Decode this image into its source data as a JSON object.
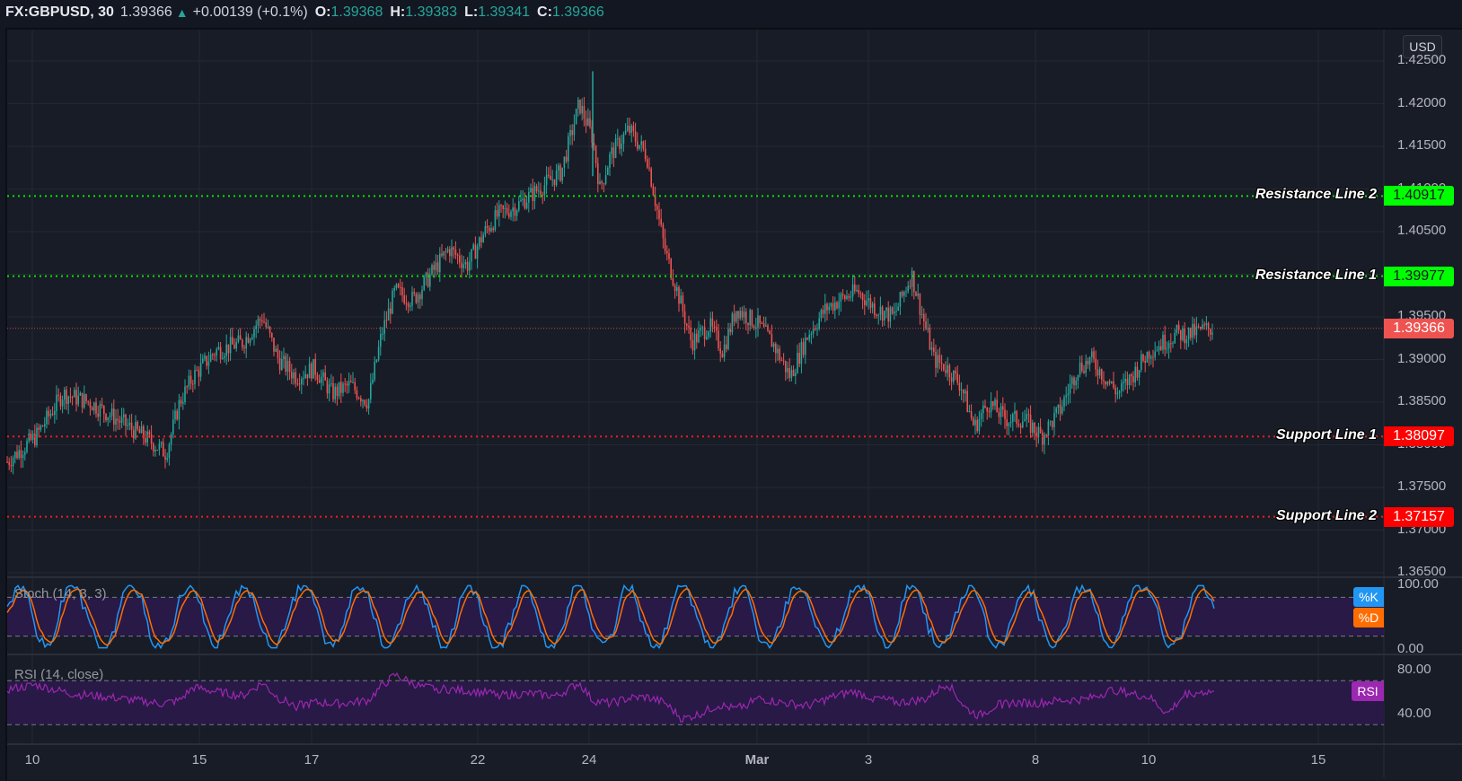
{
  "header": {
    "symbol": "FX:GBPUSD, 30",
    "last": "1.39366",
    "change_arrow": "▲",
    "change": "+0.00139 (+0.1%)",
    "o_label": "O:",
    "o": "1.39368",
    "h_label": "H:",
    "h": "1.39383",
    "l_label": "L:",
    "l": "1.39341",
    "c_label": "C:",
    "c": "1.39366"
  },
  "price_axis": {
    "currency_button": "USD",
    "ticks": [
      "1.42500",
      "1.42000",
      "1.41500",
      "1.41000",
      "1.40500",
      "1.40000",
      "1.39500",
      "1.39000",
      "1.38500",
      "1.38000",
      "1.37500",
      "1.37000",
      "1.36500"
    ]
  },
  "lines": [
    {
      "name": "Resistance Line 2",
      "value": "1.40917",
      "price": 1.40917,
      "color": "#00e600",
      "tag_bg": "#00ff00",
      "tag_fg": "#131722"
    },
    {
      "name": "Resistance Line 1",
      "value": "1.39977",
      "price": 1.39977,
      "color": "#00e600",
      "tag_bg": "#00ff00",
      "tag_fg": "#131722"
    },
    {
      "name": "Support Line 1",
      "value": "1.38097",
      "price": 1.38097,
      "color": "#ff1a1a",
      "tag_bg": "#ff0000",
      "tag_fg": "#ffffff"
    },
    {
      "name": "Support Line 2",
      "value": "1.37157",
      "price": 1.37157,
      "color": "#ff1a1a",
      "tag_bg": "#ff0000",
      "tag_fg": "#ffffff"
    }
  ],
  "current_price": {
    "value": "1.39366",
    "price": 1.39366,
    "tag_bg": "#ef5350",
    "tag_fg": "#ffffff"
  },
  "stoch": {
    "title": "Stoch (14, 3, 3)",
    "k_label": "%K",
    "d_label": "%D",
    "k_color": "#2196f3",
    "d_color": "#ff6d00",
    "axis": [
      "100.00",
      "0.00"
    ]
  },
  "rsi": {
    "title": "RSI (14, close)",
    "label": "RSI",
    "color": "#9c27b0",
    "axis": [
      "80.00",
      "40.00"
    ]
  },
  "x_axis": {
    "labels": [
      "10",
      "15",
      "17",
      "22",
      "24",
      "Mar",
      "3",
      "8",
      "10",
      "15"
    ]
  },
  "colors": {
    "up": "#26a69a",
    "down": "#ef5350",
    "background": "#181c27"
  },
  "chart_data": {
    "type": "candlestick",
    "title": "FX:GBPUSD, 30",
    "xlabel": "",
    "ylabel": "USD",
    "ylim": [
      1.3635,
      1.4265
    ],
    "x_ticks": [
      "10",
      "15",
      "17",
      "22",
      "24",
      "Mar",
      "3",
      "8",
      "10",
      "15"
    ],
    "y_ticks": [
      1.425,
      1.42,
      1.415,
      1.41,
      1.405,
      1.4,
      1.395,
      1.39,
      1.385,
      1.38,
      1.375,
      1.37,
      1.365
    ],
    "price_path": {
      "x": [
        8,
        40,
        70,
        100,
        130,
        160,
        185,
        200,
        215,
        240,
        270,
        292,
        310,
        330,
        350,
        370,
        390,
        410,
        425,
        440,
        460,
        480,
        500,
        520,
        540,
        555,
        575,
        600,
        625,
        645,
        660,
        668,
        680,
        700,
        720,
        740,
        757,
        770,
        790,
        805,
        820,
        845,
        860,
        880,
        900,
        920,
        935,
        955,
        975,
        995,
        1015,
        1040,
        1055,
        1070,
        1085,
        1100,
        1120,
        1140,
        1160,
        1180,
        1200,
        1215,
        1230,
        1245,
        1260,
        1280,
        1295,
        1310,
        1325,
        1340,
        1352
      ],
      "close": [
        1.378,
        1.381,
        1.386,
        1.385,
        1.383,
        1.381,
        1.379,
        1.385,
        1.388,
        1.391,
        1.392,
        1.395,
        1.39,
        1.388,
        1.389,
        1.386,
        1.387,
        1.385,
        1.393,
        1.398,
        1.397,
        1.4,
        1.403,
        1.401,
        1.405,
        1.407,
        1.408,
        1.41,
        1.412,
        1.42,
        1.416,
        1.41,
        1.414,
        1.417,
        1.414,
        1.403,
        1.397,
        1.392,
        1.394,
        1.391,
        1.396,
        1.394,
        1.392,
        1.388,
        1.393,
        1.396,
        1.397,
        1.398,
        1.396,
        1.395,
        1.4,
        1.39,
        1.389,
        1.387,
        1.382,
        1.385,
        1.383,
        1.383,
        1.381,
        1.384,
        1.389,
        1.39,
        1.388,
        1.386,
        1.388,
        1.391,
        1.392,
        1.393,
        1.393,
        1.3935,
        1.39366
      ]
    },
    "series": [
      {
        "name": "Resistance Line 2",
        "values": [
          1.40917
        ]
      },
      {
        "name": "Resistance Line 1",
        "values": [
          1.39977
        ]
      },
      {
        "name": "Support Line 1",
        "values": [
          1.38097
        ]
      },
      {
        "name": "Support Line 2",
        "values": [
          1.37157
        ]
      }
    ],
    "stoch_range": [
      0,
      100
    ],
    "stoch_bands": [
      20,
      80
    ],
    "rsi_range": [
      25,
      85
    ],
    "rsi_bands": [
      30,
      70
    ],
    "rsi_path": {
      "x": [
        8,
        40,
        80,
        120,
        150,
        180,
        200,
        215,
        240,
        270,
        292,
        310,
        330,
        350,
        380,
        410,
        425,
        440,
        470,
        500,
        530,
        560,
        590,
        620,
        645,
        660,
        680,
        700,
        720,
        740,
        760,
        780,
        800,
        820,
        845,
        870,
        900,
        930,
        950,
        970,
        1000,
        1030,
        1055,
        1075,
        1090,
        1110,
        1130,
        1150,
        1180,
        1210,
        1240,
        1260,
        1280,
        1300,
        1320,
        1340,
        1352
      ],
      "values": [
        62,
        66,
        58,
        55,
        52,
        49,
        52,
        64,
        60,
        56,
        68,
        54,
        47,
        50,
        49,
        52,
        65,
        75,
        64,
        62,
        60,
        57,
        58,
        56,
        68,
        52,
        49,
        54,
        55,
        50,
        35,
        40,
        48,
        44,
        54,
        50,
        47,
        56,
        60,
        55,
        50,
        53,
        68,
        45,
        38,
        48,
        50,
        49,
        52,
        53,
        62,
        58,
        55,
        40,
        58,
        60,
        60
      ]
    }
  }
}
